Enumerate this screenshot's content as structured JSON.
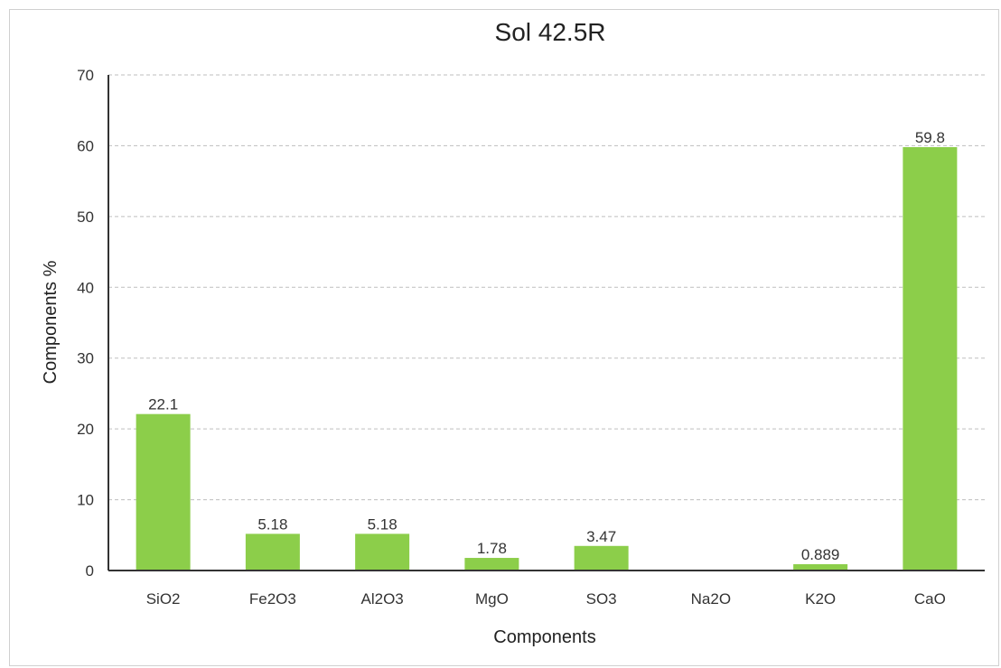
{
  "chart_data": {
    "type": "bar",
    "title": "Sol 42.5R",
    "xlabel": "Components",
    "ylabel": "Components %",
    "categories": [
      "SiO2",
      "Fe2O3",
      "Al2O3",
      "MgO",
      "SO3",
      "Na2O",
      "K2O",
      "CaO"
    ],
    "values": [
      22.1,
      5.18,
      5.18,
      1.78,
      3.47,
      0,
      0.889,
      59.8
    ],
    "data_labels": [
      "22.1",
      "5.18",
      "5.18",
      "1.78",
      "3.47",
      "",
      "0.889",
      "59.8"
    ],
    "ylim": [
      0,
      70
    ],
    "yticks": [
      "0",
      "10",
      "20",
      "30",
      "40",
      "50",
      "60",
      "70"
    ],
    "grid": true,
    "legend": "none",
    "bar_color": "#8cce4a"
  }
}
